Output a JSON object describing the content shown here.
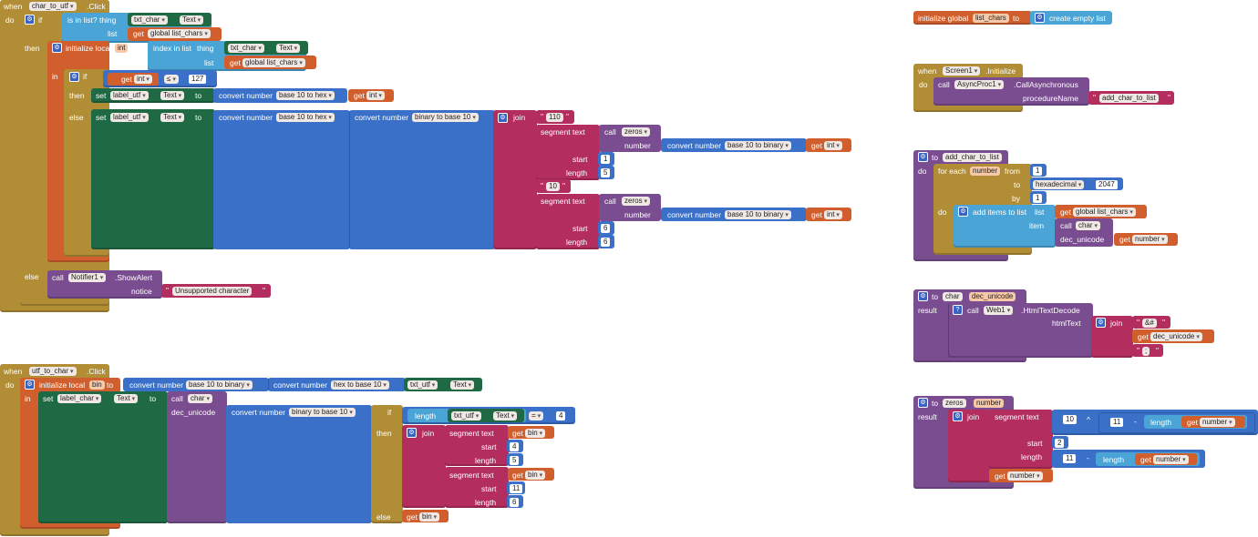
{
  "w": {
    "when": "when",
    "do": "do",
    "if": "if",
    "then": "then",
    "else": "else",
    "in": "in",
    "to": "to",
    "set": "set",
    "get": "get",
    "call": "call",
    "click": ".Click",
    "list": "list",
    "thing": "thing",
    "is_in_list": "is in list? thing",
    "init_local": "initialize local",
    "index_in_list": "index in list",
    "conv_num": "convert number",
    "join": "join",
    "segment_text": "segment  text",
    "number": "number",
    "start": "start",
    "length": "length",
    "notice": "notice",
    "result": "result",
    "init_global": "initialize global",
    "create_empty_list": "create empty list",
    "initialize": ".Initialize",
    "procedure_name": "procedureName",
    "for_each": "for each",
    "from": "from",
    "by": "by",
    "add_items": "add items to list",
    "item": "item",
    "dec_unicode": "dec_unicode",
    "html_text": "htmlText",
    "caret": "^",
    "minus": "-",
    "lte": "≤",
    "eq": "=",
    "gear": "⚙",
    "q": "?"
  },
  "f": {
    "char_to_utf": "char_to_utf",
    "txt_char": "txt_char",
    "text": "Text",
    "global_list_chars": "global list_chars",
    "int": "int",
    "n127": "127",
    "label_utf": "label_utf",
    "b10_hex": "base 10 to hex",
    "b10_bin": "base 10 to binary",
    "bin_b10": "binary to base 10",
    "hex_b10": "hex to base 10",
    "s110": "110",
    "zeros": "zeros",
    "n1": "1",
    "n5": "5",
    "s10": "10",
    "n6": "6",
    "notifier1": "Notifier1",
    "show_alert": ".ShowAlert",
    "unsupported": "Unsupported character",
    "utf_to_char": "utf_to_char",
    "bin": "bin",
    "txt_utf": "txt_utf",
    "label_char": "label_char",
    "char": "char",
    "n4": "4",
    "n11": "11",
    "list_chars": "list_chars",
    "screen1": "Screen1",
    "asyncproc1": "AsyncProc1",
    "call_async": ".CallAsynchronous",
    "add_char_to_list": "add_char_to_list",
    "number": "number",
    "hexadecimal": "hexadecimal",
    "n2047": "2047",
    "dec_unicode": "dec_unicode",
    "web1": "Web1",
    "html_decode": ".HtmlTextDecode",
    "amp": "&#",
    "semi": ";",
    "n10": "10",
    "n2": "2"
  },
  "colors": {
    "event": "#b18e35",
    "variable": "#d05f2d",
    "math": "#3a70c8",
    "list": "#4aa5d6",
    "component": "#1f6a44",
    "procedure": "#7a4c90",
    "text": "#b32d5e"
  }
}
